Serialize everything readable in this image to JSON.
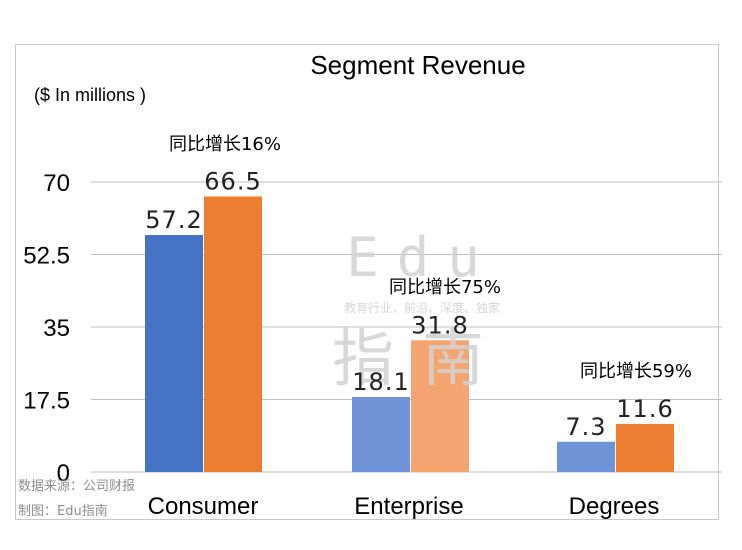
{
  "chart_data": {
    "type": "bar",
    "title": "Segment Revenue",
    "subtitle": "($ In millions )",
    "categories": [
      "Consumer",
      "Enterprise",
      "Degrees"
    ],
    "series": [
      {
        "values": [
          57.2,
          18.1,
          7.3
        ],
        "colors": [
          "#4472c4",
          "#7092d6",
          "#7092d6"
        ]
      },
      {
        "values": [
          66.5,
          31.8,
          11.6
        ],
        "colors": [
          "#ed7d31",
          "#f4a46e",
          "#ed7d31"
        ]
      }
    ],
    "growth_labels": [
      "同比增长16%",
      "同比增长75%",
      "同比增长59%"
    ],
    "yticks": [
      "0",
      "17.5",
      "35",
      "52.5",
      "70"
    ],
    "ylim": [
      0,
      70
    ],
    "grid": true
  },
  "watermark": {
    "line1": "Edu",
    "line2": "教育行业，前沿、深度、独家",
    "line3": "指南"
  },
  "footer": {
    "source": "数据来源：公司财报",
    "credit": "制图：Edu指南"
  }
}
